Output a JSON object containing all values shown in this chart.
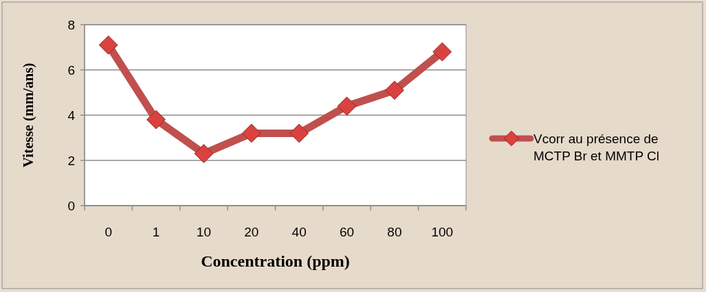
{
  "chart_data": {
    "type": "line",
    "xlabel": "Concentration (ppm)",
    "ylabel": "Vitesse (mm/ans)",
    "categories": [
      "0",
      "1",
      "10",
      "20",
      "40",
      "60",
      "80",
      "100"
    ],
    "series": [
      {
        "name": "Vcorr au présence de MCTP Br et MMTP Cl",
        "color": "#c0504d",
        "values": [
          7.1,
          3.8,
          2.3,
          3.2,
          3.2,
          4.4,
          5.1,
          6.8
        ]
      }
    ],
    "ylim": [
      0,
      8
    ],
    "yticks": [
      0,
      2,
      4,
      6,
      8
    ],
    "grid": "y",
    "legend": "right",
    "marker": "diamond"
  }
}
